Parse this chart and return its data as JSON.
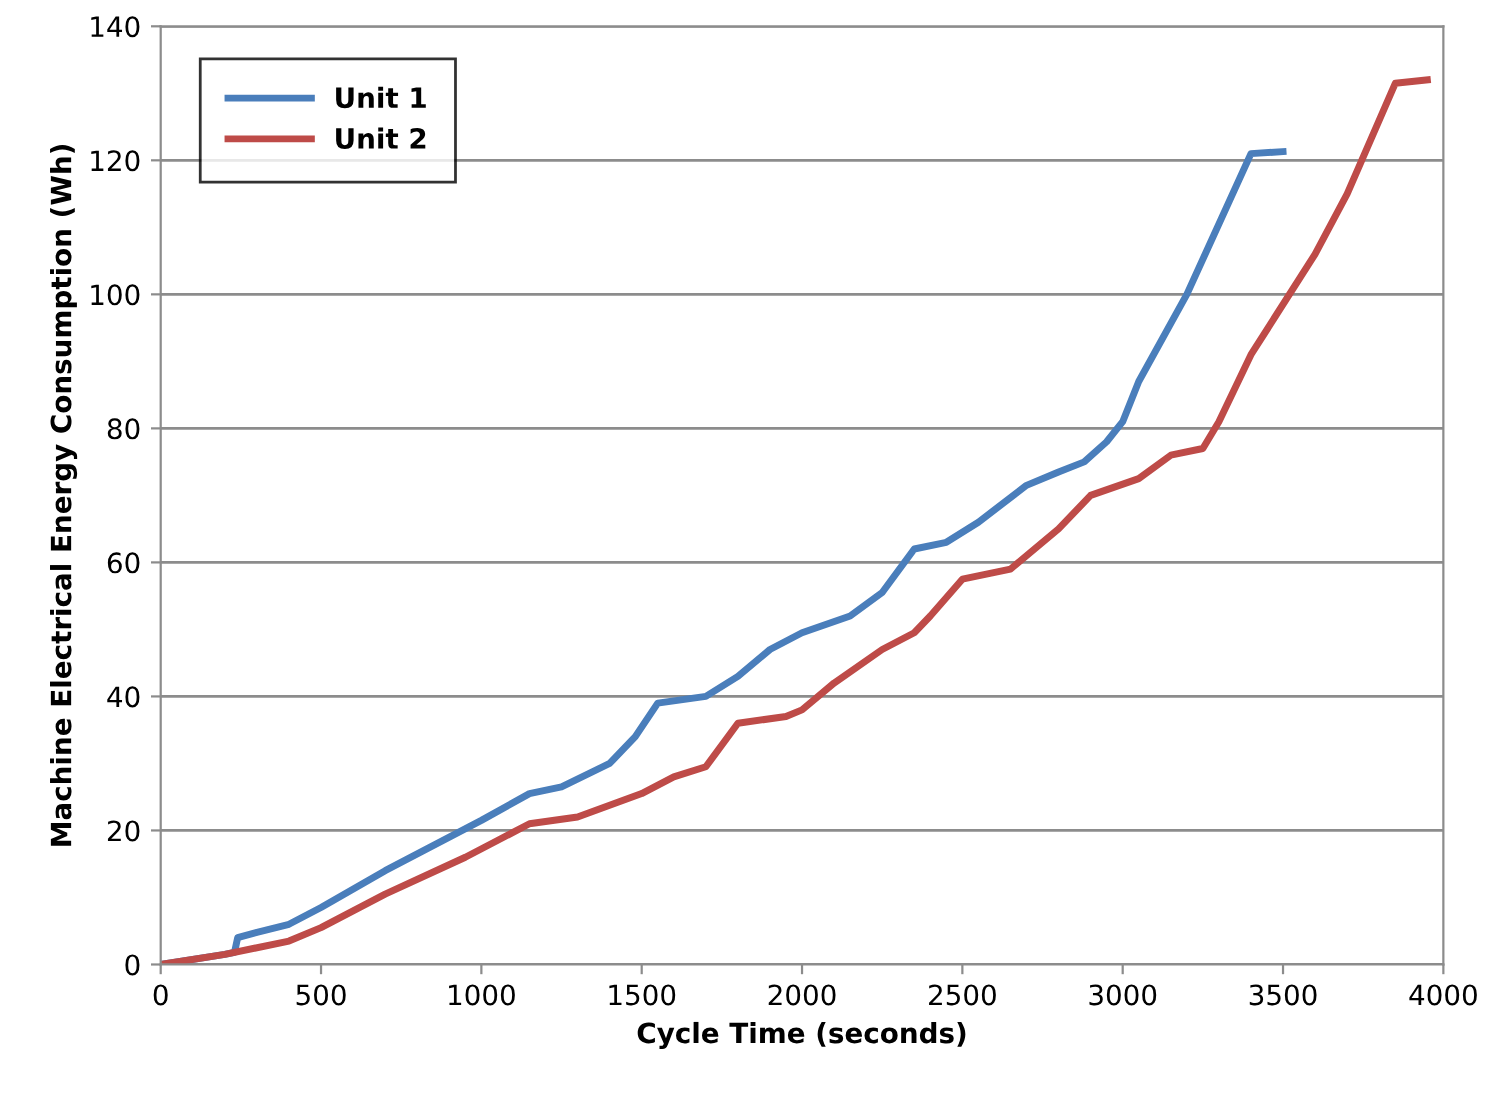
{
  "chart_data": {
    "type": "line",
    "xlabel": "Cycle Time (seconds)",
    "ylabel": "Machine Electrical Energy Consumption (Wh)",
    "xlim": [
      0,
      4000
    ],
    "xticks": [
      0,
      500,
      1000,
      1500,
      2000,
      2500,
      3000,
      3500,
      4000
    ],
    "ylim": [
      0,
      140
    ],
    "yticks": [
      0,
      20,
      40,
      60,
      80,
      100,
      120,
      140
    ],
    "grid": "y",
    "legend": "top left",
    "marker": "none",
    "line_style": "solid",
    "series": [
      {
        "name": "Unit 1",
        "color": "#4a7ebb",
        "x": [
          0,
          200,
          230,
          240,
          300,
          400,
          500,
          700,
          1000,
          1150,
          1250,
          1400,
          1480,
          1550,
          1700,
          1800,
          1900,
          2000,
          2150,
          2250,
          2350,
          2450,
          2550,
          2700,
          2800,
          2880,
          2950,
          3000,
          3050,
          3200,
          3400,
          3500
        ],
        "values": [
          0,
          1.5,
          1.8,
          4,
          4.8,
          6,
          8.5,
          14,
          21.5,
          25.5,
          26.5,
          30,
          34,
          39,
          40,
          43,
          47,
          49.5,
          52,
          55.5,
          62,
          63,
          66,
          71.5,
          73.5,
          75,
          78,
          81,
          87,
          100,
          121,
          121.3
        ]
      },
      {
        "name": "Unit 2",
        "color": "#be4b48",
        "x": [
          0,
          200,
          400,
          500,
          700,
          950,
          1050,
          1150,
          1300,
          1500,
          1600,
          1700,
          1800,
          1950,
          2000,
          2100,
          2250,
          2350,
          2400,
          2500,
          2650,
          2800,
          2900,
          3050,
          3150,
          3250,
          3300,
          3400,
          3600,
          3700,
          3850,
          3950
        ],
        "values": [
          0,
          1.5,
          3.5,
          5.5,
          10.5,
          16,
          18.5,
          21,
          22,
          25.5,
          28,
          29.5,
          36,
          37,
          38,
          42,
          47,
          49.5,
          52,
          57.5,
          59,
          65,
          70,
          72.5,
          76,
          77,
          81,
          91,
          106,
          115,
          131.5,
          132
        ]
      }
    ]
  }
}
